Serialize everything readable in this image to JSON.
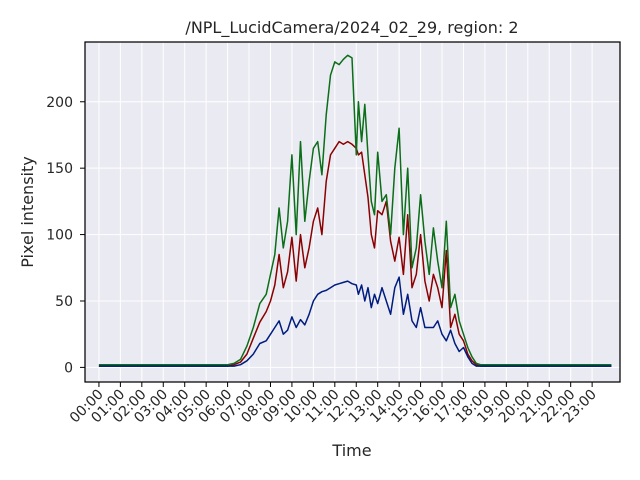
{
  "chart_data": {
    "type": "line",
    "title": "/NPL_LucidCamera/2024_02_29, region: 2",
    "xlabel": "Time",
    "ylabel": "Pixel intensity",
    "xlim": [
      -0.65,
      24.3
    ],
    "ylim": [
      -11,
      245
    ],
    "xticks": [
      {
        "value": 0,
        "label": "00:00"
      },
      {
        "value": 1,
        "label": "01:00"
      },
      {
        "value": 2,
        "label": "02:00"
      },
      {
        "value": 3,
        "label": "03:00"
      },
      {
        "value": 4,
        "label": "04:00"
      },
      {
        "value": 5,
        "label": "05:00"
      },
      {
        "value": 6,
        "label": "06:00"
      },
      {
        "value": 7,
        "label": "07:00"
      },
      {
        "value": 8,
        "label": "08:00"
      },
      {
        "value": 9,
        "label": "09:00"
      },
      {
        "value": 10,
        "label": "10:00"
      },
      {
        "value": 11,
        "label": "11:00"
      },
      {
        "value": 12,
        "label": "12:00"
      },
      {
        "value": 13,
        "label": "13:00"
      },
      {
        "value": 14,
        "label": "14:00"
      },
      {
        "value": 15,
        "label": "15:00"
      },
      {
        "value": 16,
        "label": "16:00"
      },
      {
        "value": 17,
        "label": "17:00"
      },
      {
        "value": 18,
        "label": "18:00"
      },
      {
        "value": 19,
        "label": "19:00"
      },
      {
        "value": 20,
        "label": "20:00"
      },
      {
        "value": 21,
        "label": "21:00"
      },
      {
        "value": 22,
        "label": "22:00"
      },
      {
        "value": 23,
        "label": "23:00"
      }
    ],
    "yticks": [
      {
        "value": 0,
        "label": "0"
      },
      {
        "value": 50,
        "label": "50"
      },
      {
        "value": 100,
        "label": "100"
      },
      {
        "value": 150,
        "label": "150"
      },
      {
        "value": 200,
        "label": "200"
      }
    ],
    "grid": true,
    "series": [
      {
        "color": "#8b0000",
        "x": [
          0,
          1,
          2,
          3,
          4,
          5,
          6,
          6.3,
          6.6,
          6.9,
          7.2,
          7.5,
          7.8,
          8.0,
          8.2,
          8.4,
          8.6,
          8.8,
          9.0,
          9.2,
          9.4,
          9.6,
          9.8,
          10.0,
          10.2,
          10.4,
          10.6,
          10.8,
          11.0,
          11.2,
          11.4,
          11.6,
          11.8,
          12.0,
          12.1,
          12.25,
          12.4,
          12.55,
          12.7,
          12.85,
          13.0,
          13.2,
          13.4,
          13.6,
          13.8,
          14.0,
          14.2,
          14.4,
          14.6,
          14.8,
          15.0,
          15.2,
          15.4,
          15.6,
          15.8,
          16.0,
          16.2,
          16.4,
          16.6,
          16.8,
          17.0,
          17.2,
          17.4,
          17.6,
          17.8,
          18.0,
          19,
          20,
          21,
          22,
          23,
          23.9
        ],
        "y": [
          1,
          1,
          1,
          1,
          1,
          1,
          1,
          2,
          4,
          10,
          22,
          34,
          42,
          50,
          62,
          85,
          60,
          72,
          98,
          65,
          100,
          75,
          90,
          110,
          120,
          100,
          140,
          160,
          165,
          170,
          168,
          170,
          168,
          165,
          160,
          162,
          145,
          128,
          100,
          90,
          118,
          115,
          125,
          95,
          80,
          98,
          70,
          115,
          60,
          70,
          100,
          65,
          50,
          70,
          60,
          45,
          88,
          30,
          40,
          25,
          20,
          10,
          5,
          2,
          1,
          1,
          1,
          1,
          1,
          1,
          1,
          1
        ]
      },
      {
        "color": "#0b6e18",
        "x": [
          0,
          1,
          2,
          3,
          4,
          5,
          6,
          6.3,
          6.6,
          6.9,
          7.2,
          7.5,
          7.8,
          8.0,
          8.2,
          8.4,
          8.6,
          8.8,
          9.0,
          9.2,
          9.4,
          9.6,
          9.8,
          10.0,
          10.2,
          10.4,
          10.6,
          10.8,
          11.0,
          11.2,
          11.4,
          11.6,
          11.8,
          12.0,
          12.1,
          12.25,
          12.4,
          12.55,
          12.7,
          12.85,
          13.0,
          13.2,
          13.4,
          13.6,
          13.8,
          14.0,
          14.2,
          14.4,
          14.6,
          14.8,
          15.0,
          15.2,
          15.4,
          15.6,
          15.8,
          16.0,
          16.2,
          16.4,
          16.6,
          16.8,
          17.0,
          17.2,
          17.4,
          17.6,
          17.8,
          18.0,
          19,
          20,
          21,
          22,
          23,
          23.9
        ],
        "y": [
          2,
          2,
          2,
          2,
          2,
          2,
          2,
          3,
          6,
          16,
          30,
          48,
          55,
          70,
          85,
          120,
          90,
          110,
          160,
          100,
          170,
          110,
          140,
          165,
          170,
          145,
          190,
          220,
          230,
          228,
          232,
          235,
          233,
          160,
          200,
          170,
          198,
          160,
          125,
          115,
          162,
          125,
          130,
          100,
          150,
          180,
          100,
          150,
          75,
          90,
          130,
          95,
          70,
          105,
          80,
          60,
          110,
          45,
          55,
          35,
          25,
          15,
          8,
          3,
          2,
          2,
          2,
          2,
          2,
          2,
          2,
          2
        ]
      },
      {
        "color": "#001c7f",
        "x": [
          0,
          1,
          2,
          3,
          4,
          5,
          6,
          6.3,
          6.6,
          6.9,
          7.2,
          7.5,
          7.8,
          8.0,
          8.2,
          8.4,
          8.6,
          8.8,
          9.0,
          9.2,
          9.4,
          9.6,
          9.8,
          10.0,
          10.2,
          10.4,
          10.6,
          10.8,
          11.0,
          11.2,
          11.4,
          11.6,
          11.8,
          12.0,
          12.1,
          12.25,
          12.4,
          12.55,
          12.7,
          12.85,
          13.0,
          13.2,
          13.4,
          13.6,
          13.8,
          14.0,
          14.2,
          14.4,
          14.6,
          14.8,
          15.0,
          15.2,
          15.4,
          15.6,
          15.8,
          16.0,
          16.2,
          16.4,
          16.6,
          16.8,
          17.0,
          17.2,
          17.4,
          17.6,
          17.8,
          18.0,
          19,
          20,
          21,
          22,
          23,
          23.9
        ],
        "y": [
          1,
          1,
          1,
          1,
          1,
          1,
          1,
          1,
          2,
          5,
          10,
          18,
          20,
          25,
          30,
          35,
          25,
          28,
          38,
          30,
          36,
          32,
          40,
          50,
          55,
          57,
          58,
          60,
          62,
          63,
          64,
          65,
          63,
          62,
          55,
          62,
          50,
          60,
          45,
          55,
          48,
          60,
          50,
          40,
          60,
          68,
          40,
          55,
          35,
          30,
          45,
          30,
          30,
          30,
          35,
          25,
          20,
          28,
          18,
          12,
          15,
          8,
          3,
          1,
          1,
          1,
          1,
          1,
          1,
          1,
          1,
          1
        ]
      }
    ]
  }
}
